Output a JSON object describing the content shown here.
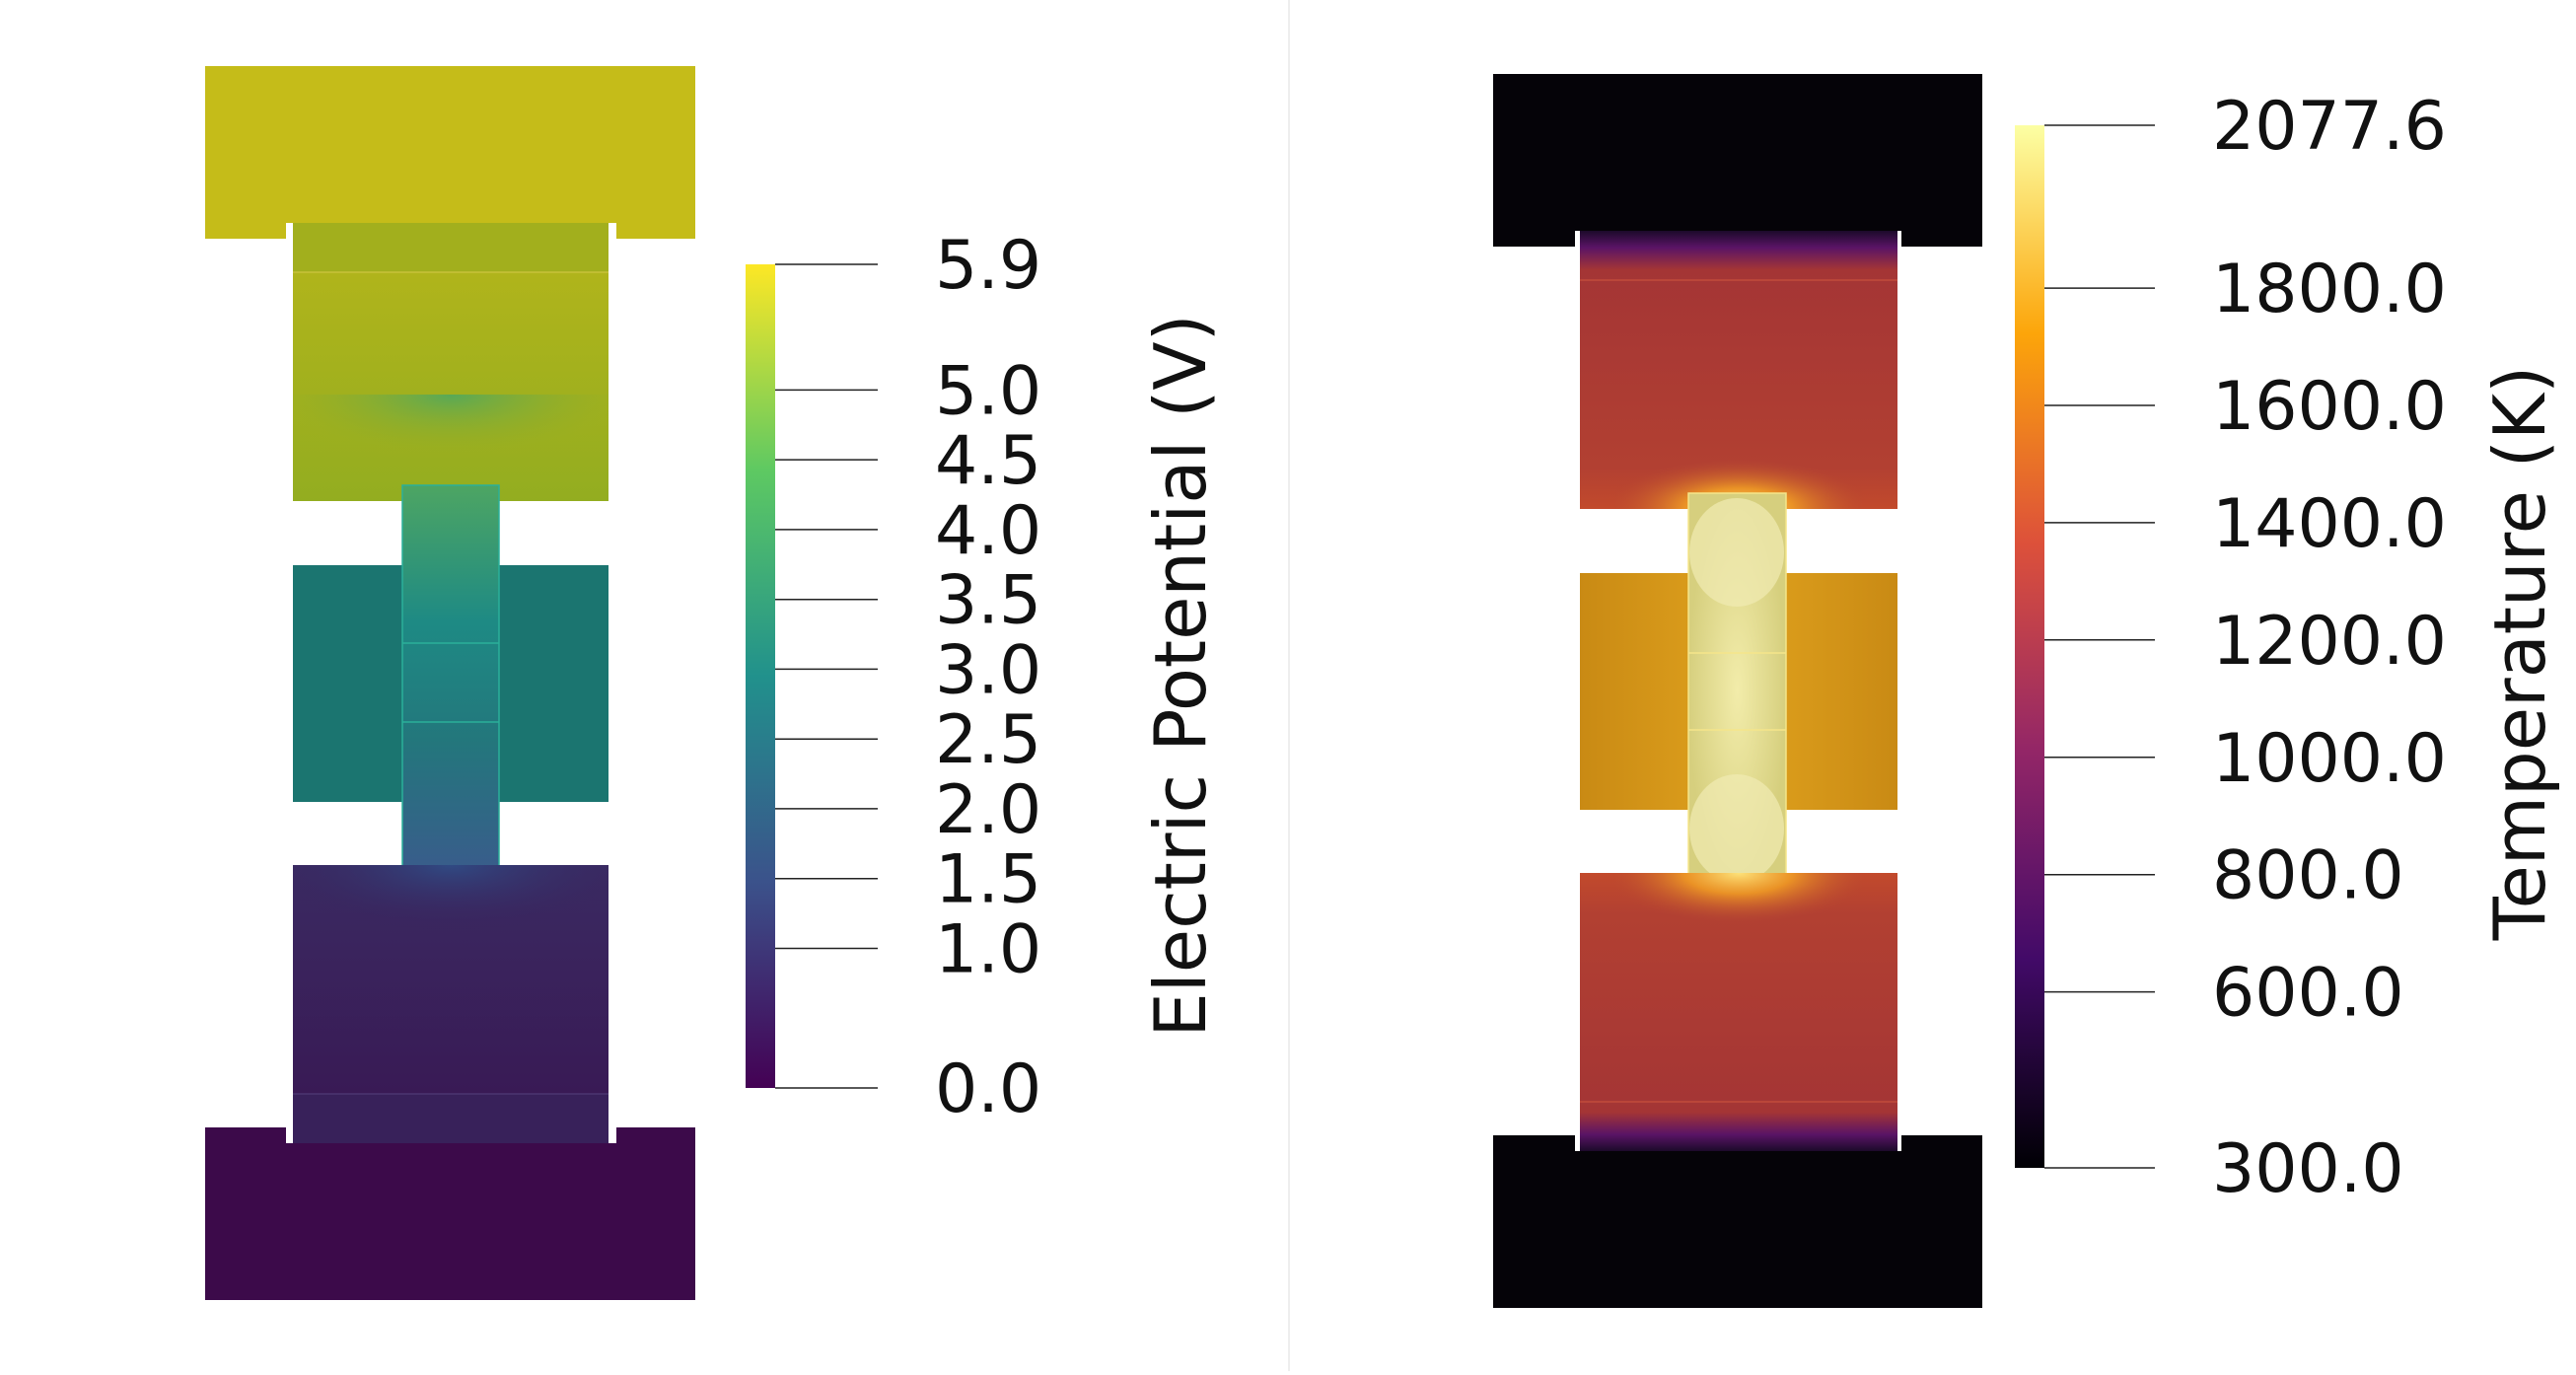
{
  "left_view": {
    "title": "Electric Potential (V)",
    "range": [
      0.0,
      5.9
    ],
    "tick_values": [
      5.9,
      5.0,
      4.5,
      4.0,
      3.5,
      3.0,
      2.5,
      2.0,
      1.5,
      1.0,
      0.0
    ],
    "tick_labels": [
      "5.9",
      "5.0",
      "4.5",
      "4.0",
      "3.5",
      "3.0",
      "2.5",
      "2.0",
      "1.5",
      "1.0",
      "0.0"
    ],
    "colormap": "viridis",
    "colorbar_stops": [
      "#440154",
      "#3b528b",
      "#21918c",
      "#5ec962",
      "#fde725"
    ],
    "colors": {
      "top_cap": "#c5bc19",
      "upper_block": "#a2af1d",
      "sample_top": "#3e9a74",
      "middle_block": "#1b7570",
      "sample_bottom": "#2d6a89",
      "lower_block": "#38215a",
      "bottom_cap": "#3c0a4a"
    }
  },
  "right_view": {
    "title": "Temperature (K)",
    "range": [
      300.0,
      2077.6
    ],
    "tick_values": [
      2077.6,
      1800.0,
      1600.0,
      1400.0,
      1200.0,
      1000.0,
      800.0,
      600.0,
      300.0
    ],
    "tick_labels": [
      "2077.6",
      "1800.0",
      "1600.0",
      "1400.0",
      "1200.0",
      "1000.0",
      "800.0",
      "600.0",
      "300.0"
    ],
    "colormap": "inferno",
    "colorbar_stops": [
      "#000004",
      "#420a68",
      "#932667",
      "#dd513a",
      "#fca50a",
      "#fcffa4"
    ],
    "colors": {
      "caps": "#050308",
      "hot_blocks": "#a33535",
      "middle_block": "#d39218",
      "sample": "#d7d28a",
      "hotspot": "#fcf098",
      "transition": "#4a1060"
    }
  }
}
